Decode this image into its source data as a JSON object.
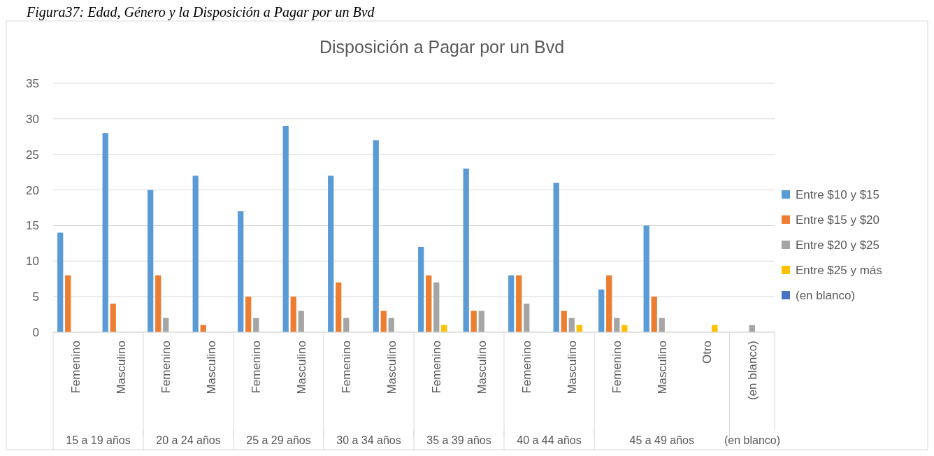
{
  "chart_data": {
    "type": "bar",
    "title": "Disposición a Pagar por un Bvd",
    "annotations": [
      "Figura37: Edad, Género y la Disposición a Pagar por un Bvd",
      "15 a 19 años",
      "20 a 24 años",
      "25 a 29 años",
      "30 a 34 años",
      "35 a 39 años",
      "40 a 44 años",
      "45 a 49 años",
      "(en blanco)"
    ],
    "categories": [
      "Femenino",
      "Masculino",
      "Femenino",
      "Masculino",
      "Femenino",
      "Masculino",
      "Femenino",
      "Masculino",
      "Femenino",
      "Masculino",
      "Femenino",
      "Masculino",
      "Femenino",
      "Masculino",
      "Otro",
      "(en blanco)"
    ],
    "series": [
      {
        "name": "Entre $10 y $15",
        "color": "#5b9bd5",
        "values": [
          14,
          28,
          20,
          22,
          17,
          29,
          22,
          27,
          12,
          23,
          8,
          21,
          6,
          15,
          null,
          null
        ]
      },
      {
        "name": "Entre $15 y $20",
        "color": "#ed7d31",
        "values": [
          8,
          4,
          8,
          1,
          5,
          5,
          7,
          3,
          8,
          3,
          8,
          3,
          8,
          5,
          null,
          null
        ]
      },
      {
        "name": "Entre $20 y $25",
        "color": "#a5a5a5",
        "values": [
          null,
          null,
          2,
          null,
          2,
          3,
          2,
          2,
          7,
          3,
          4,
          2,
          2,
          2,
          null,
          1
        ]
      },
      {
        "name": "Entre $25 y más",
        "color": "#ffc000",
        "values": [
          null,
          null,
          null,
          null,
          null,
          null,
          null,
          null,
          1,
          null,
          null,
          1,
          1,
          null,
          1,
          null
        ]
      },
      {
        "name": "(en blanco)",
        "color": "#4472c4",
        "values": [
          null,
          null,
          null,
          null,
          null,
          null,
          null,
          null,
          null,
          null,
          null,
          null,
          null,
          null,
          null,
          null
        ]
      }
    ],
    "ylim": [
      0,
      35
    ],
    "yticks": [
      0,
      5,
      10,
      15,
      20,
      25,
      30,
      35
    ],
    "grid": "y",
    "legend": "right"
  }
}
